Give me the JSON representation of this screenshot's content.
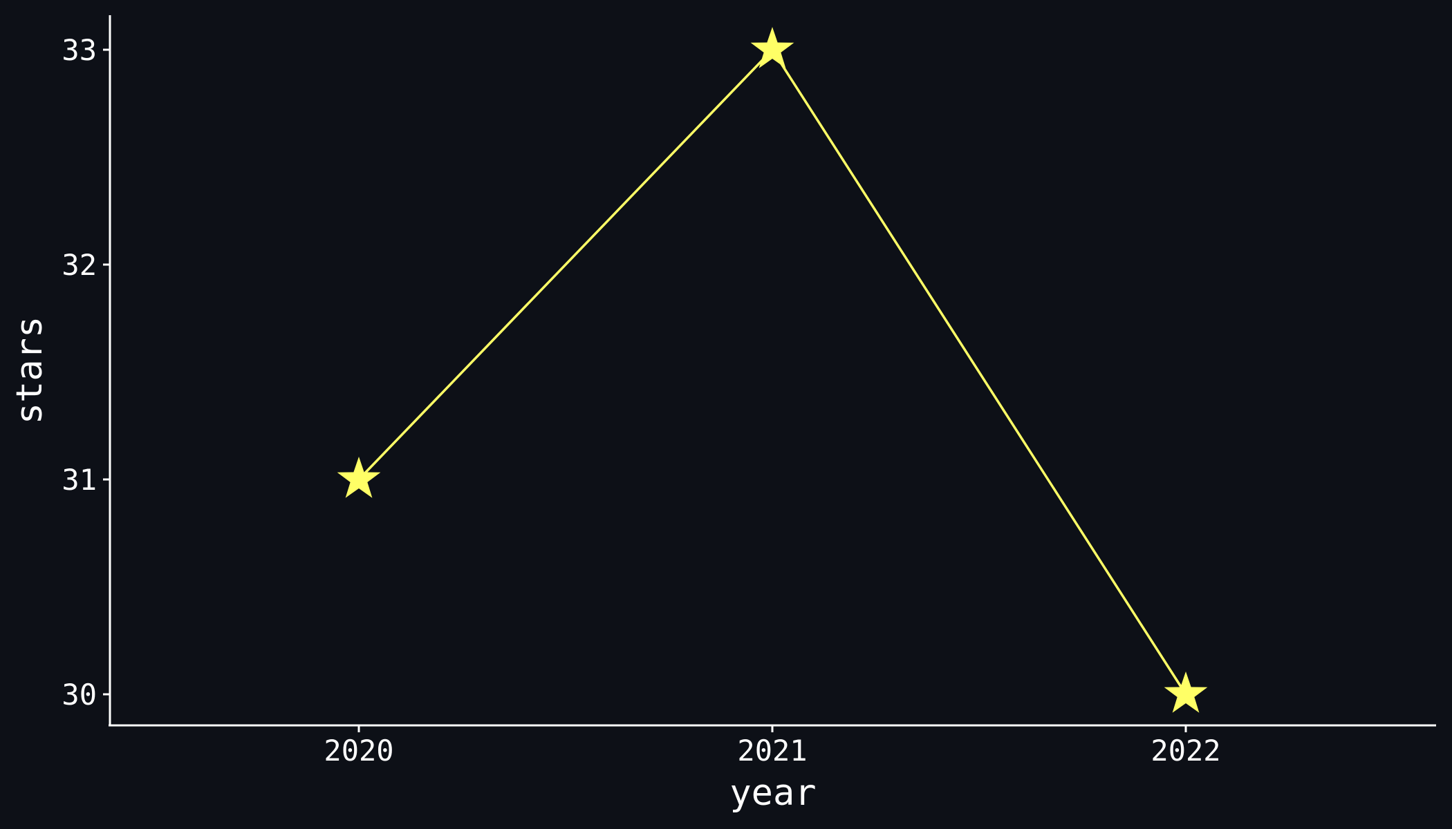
{
  "chart_data": {
    "type": "line",
    "title": "",
    "xlabel": "year",
    "ylabel": "stars",
    "categories": [
      "2020",
      "2021",
      "2022"
    ],
    "series": [
      {
        "values": [
          31,
          33,
          30
        ]
      }
    ],
    "ylim": [
      29.85,
      33.15
    ],
    "yticks": [
      "30",
      "31",
      "32",
      "33"
    ],
    "grid": false,
    "legend": "none",
    "marker": "star",
    "colors": {
      "background": "#0d1017",
      "axis": "#ffffff",
      "text": "#ffffff",
      "series": "#ffff66"
    }
  }
}
